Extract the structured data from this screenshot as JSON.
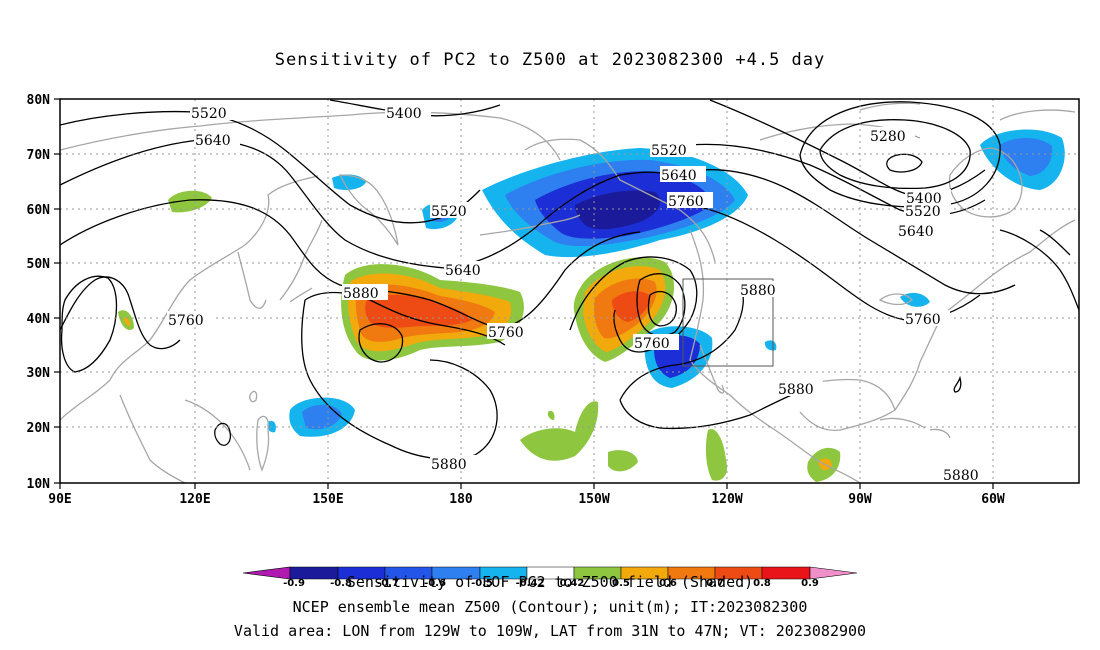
{
  "title": "Sensitivity of PC2 to Z500 at 2023082300 +4.5 day",
  "lat_labels": [
    "80N",
    "70N",
    "60N",
    "50N",
    "40N",
    "30N",
    "20N",
    "10N"
  ],
  "lon_labels": [
    "90E",
    "120E",
    "150E",
    "180",
    "150W",
    "120W",
    "90W",
    "60W"
  ],
  "contour_labels": [
    "5520",
    "5400",
    "5640",
    "5280",
    "5520",
    "5640",
    "5760",
    "5400",
    "5520",
    "5640",
    "5520",
    "5640",
    "5880",
    "5760",
    "5760",
    "5760",
    "5880",
    "5880",
    "5880",
    "5760",
    "5880"
  ],
  "colorbar": {
    "ticks": [
      "-0.9",
      "-0.8",
      "-0.7",
      "-0.6",
      "-0.5",
      "-0.42",
      "0.42",
      "0.5",
      "0.6",
      "0.7",
      "0.8",
      "0.9"
    ],
    "colors": [
      "#1a1a9a",
      "#1c2fd6",
      "#2255e8",
      "#2e7ff0",
      "#16b4ef",
      "#ffffff",
      "#8ec63f",
      "#f2a90c",
      "#f07a10",
      "#ee4a14",
      "#e8141a"
    ],
    "low_end_color": "#b01ab0",
    "high_end_color": "#f090c8"
  },
  "footer": {
    "line1": "Sensitivity of EOF PC2 to Z500 field (Shaded)",
    "line2": "NCEP ensemble mean Z500 (Contour); unit(m); IT:2023082300",
    "line3": "Valid area: LON from 129W to 109W, LAT from 31N to 47N; VT: 2023082900"
  }
}
